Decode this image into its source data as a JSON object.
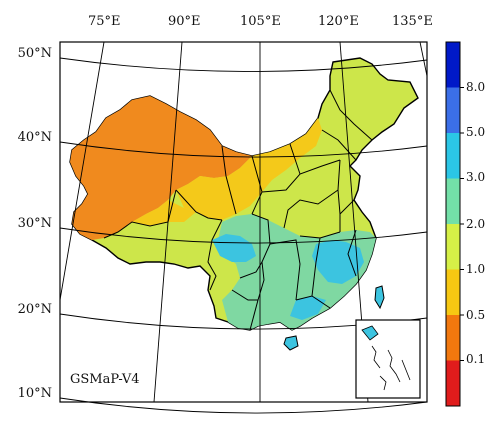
{
  "map": {
    "product_label": "GSMaP-V4",
    "lon_labels": [
      "75°E",
      "90°E",
      "105°E",
      "120°E",
      "135°E"
    ],
    "lat_labels": [
      "50°N",
      "40°N",
      "30°N",
      "20°N",
      "10°N"
    ]
  },
  "colorbar": {
    "labels": [
      "8.0",
      "5.0",
      "3.0",
      "2.0",
      "1.0",
      "0.5",
      "0.1"
    ],
    "colors": [
      "#0019c8",
      "#3b6fe8",
      "#2bc6e6",
      "#73e0a8",
      "#d6f047",
      "#f7c812",
      "#f2780e",
      "#e01c1c"
    ]
  },
  "colors": {
    "arid": "#f08a1e",
    "semi_arid": "#f4c91a",
    "moderate": "#cde64a",
    "humid": "#7fd8a2",
    "wet": "#3cc4e0",
    "border": "#000000"
  }
}
